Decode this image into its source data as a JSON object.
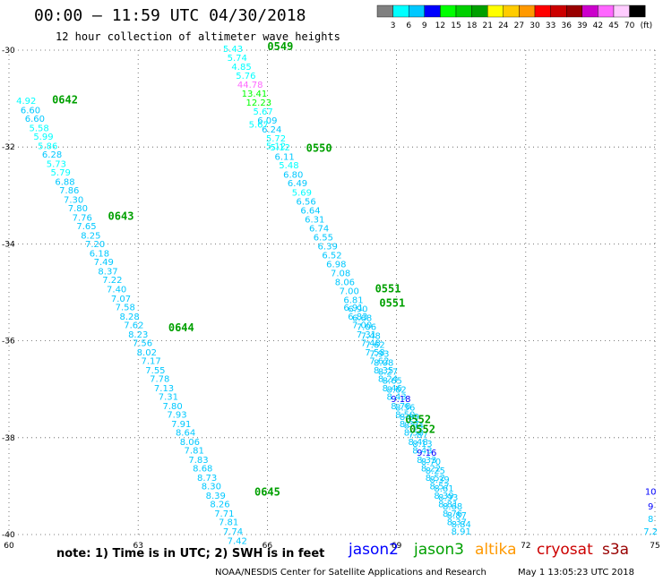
{
  "header": {
    "title": "00:00 — 11:59 UTC 04/30/2018",
    "subtitle": "12 hour collection of altimeter wave heights"
  },
  "colorbar": {
    "labels": [
      "3",
      "6",
      "9",
      "12",
      "15",
      "18",
      "21",
      "24",
      "27",
      "30",
      "33",
      "36",
      "39",
      "42",
      "45",
      "70"
    ],
    "unit": "(ft)",
    "colors": [
      "#808080",
      "#00ffff",
      "#00c8ff",
      "#0000ff",
      "#00ff00",
      "#00d000",
      "#00a000",
      "#ffff00",
      "#ffcc00",
      "#ff9900",
      "#ff0000",
      "#cc0000",
      "#990000",
      "#cc00cc",
      "#ff66ff",
      "#ffccff",
      "#000000"
    ]
  },
  "footer": {
    "note": "note:  1) Time is in UTC;  2) SWH is in feet",
    "satellites": [
      {
        "name": "jason2",
        "color": "#0000ff"
      },
      {
        "name": "jason3",
        "color": "#00a000"
      },
      {
        "name": "altika",
        "color": "#ff9900"
      },
      {
        "name": "cryosat",
        "color": "#cc0000"
      },
      {
        "name": "s3a",
        "color": "#990000"
      }
    ],
    "credit": "NOAA/NESDIS Center for Satellite Applications and Research",
    "timestamp": "May  1 13:05:23 UTC 2018"
  },
  "chart_data": {
    "type": "scatter",
    "xlim": [
      60,
      75
    ],
    "ylim": [
      -40,
      -30
    ],
    "x_ticks": [
      "60",
      "63",
      "66",
      "69",
      "72",
      "75"
    ],
    "y_ticks": [
      "-30",
      "-32",
      "-34",
      "-36",
      "-38",
      "-40"
    ],
    "grid": true,
    "tracks": [
      {
        "satellite": "jason3",
        "points": [
          {
            "x": 60.4,
            "y": -31.11,
            "v": "4.92"
          },
          {
            "x": 60.5,
            "y": -31.3,
            "v": "6.60"
          },
          {
            "x": 60.6,
            "y": -31.48,
            "v": "6.60"
          },
          {
            "x": 60.7,
            "y": -31.67,
            "v": "5.58"
          },
          {
            "x": 60.8,
            "y": -31.85,
            "v": "5.99"
          },
          {
            "x": 60.9,
            "y": -32.04,
            "v": "5.86"
          },
          {
            "x": 61.0,
            "y": -32.22,
            "v": "6.28"
          },
          {
            "x": 61.1,
            "y": -32.41,
            "v": "5.73"
          },
          {
            "x": 61.2,
            "y": -32.59,
            "v": "5.79"
          },
          {
            "x": 61.3,
            "y": -32.78,
            "v": "6.88"
          },
          {
            "x": 61.4,
            "y": -32.96,
            "v": "7.86"
          },
          {
            "x": 61.5,
            "y": -33.15,
            "v": "7.30"
          },
          {
            "x": 61.6,
            "y": -33.33,
            "v": "7.80"
          },
          {
            "x": 61.7,
            "y": -33.52,
            "v": "7.76"
          },
          {
            "x": 61.8,
            "y": -33.7,
            "v": "7.65"
          },
          {
            "x": 61.9,
            "y": -33.89,
            "v": "8.25"
          },
          {
            "x": 62.0,
            "y": -34.07,
            "v": "7.20"
          },
          {
            "x": 62.1,
            "y": -34.26,
            "v": "6.18"
          },
          {
            "x": 62.2,
            "y": -34.44,
            "v": "7.49"
          },
          {
            "x": 62.3,
            "y": -34.63,
            "v": "8.37"
          },
          {
            "x": 62.4,
            "y": -34.81,
            "v": "7.22"
          },
          {
            "x": 62.5,
            "y": -35.0,
            "v": "7.40"
          },
          {
            "x": 62.6,
            "y": -35.19,
            "v": "7.07"
          },
          {
            "x": 62.7,
            "y": -35.37,
            "v": "7.58"
          },
          {
            "x": 62.8,
            "y": -35.56,
            "v": "8.28"
          },
          {
            "x": 62.9,
            "y": -35.74,
            "v": "7.62"
          },
          {
            "x": 63.0,
            "y": -35.93,
            "v": "8.23"
          },
          {
            "x": 63.1,
            "y": -36.11,
            "v": "7.56"
          },
          {
            "x": 63.2,
            "y": -36.3,
            "v": "8.02"
          },
          {
            "x": 63.3,
            "y": -36.48,
            "v": "7.17"
          },
          {
            "x": 63.4,
            "y": -36.67,
            "v": "7.55"
          },
          {
            "x": 63.5,
            "y": -36.85,
            "v": "7.78"
          },
          {
            "x": 63.6,
            "y": -37.04,
            "v": "7.13"
          },
          {
            "x": 63.7,
            "y": -37.22,
            "v": "7.31"
          },
          {
            "x": 63.8,
            "y": -37.41,
            "v": "7.80"
          },
          {
            "x": 63.9,
            "y": -37.59,
            "v": "7.93"
          },
          {
            "x": 64.0,
            "y": -37.78,
            "v": "7.91"
          },
          {
            "x": 64.1,
            "y": -37.96,
            "v": "8.64"
          },
          {
            "x": 64.2,
            "y": -38.15,
            "v": "8.06"
          },
          {
            "x": 64.3,
            "y": -38.33,
            "v": "7.81"
          },
          {
            "x": 64.4,
            "y": -38.52,
            "v": "7.83"
          },
          {
            "x": 64.5,
            "y": -38.7,
            "v": "8.68"
          },
          {
            "x": 64.6,
            "y": -38.89,
            "v": "8.73"
          },
          {
            "x": 64.7,
            "y": -39.07,
            "v": "8.30"
          },
          {
            "x": 64.8,
            "y": -39.26,
            "v": "8.39"
          },
          {
            "x": 64.9,
            "y": -39.44,
            "v": "8.26"
          },
          {
            "x": 65.0,
            "y": -39.63,
            "v": "7.71"
          },
          {
            "x": 65.1,
            "y": -39.81,
            "v": "7.81"
          },
          {
            "x": 65.2,
            "y": -40.0,
            "v": "7.74"
          },
          {
            "x": 65.3,
            "y": -40.19,
            "v": "7.42"
          }
        ],
        "time_labels": [
          {
            "x": 61.0,
            "y": -31.1,
            "text": "0642"
          },
          {
            "x": 62.3,
            "y": -33.5,
            "text": "0643"
          },
          {
            "x": 63.7,
            "y": -35.8,
            "text": "0644"
          },
          {
            "x": 65.7,
            "y": -39.2,
            "text": "0645"
          }
        ]
      },
      {
        "satellite": "jason3",
        "points": [
          {
            "x": 65.2,
            "y": -30.04,
            "v": "5.43"
          },
          {
            "x": 65.3,
            "y": -30.22,
            "v": "5.74"
          },
          {
            "x": 65.4,
            "y": -30.41,
            "v": "4.85"
          },
          {
            "x": 65.5,
            "y": -30.59,
            "v": "5.76"
          },
          {
            "x": 65.6,
            "y": -30.78,
            "v": "44.78"
          },
          {
            "x": 65.7,
            "y": -30.96,
            "v": "13.41"
          },
          {
            "x": 65.8,
            "y": -31.15,
            "v": "12.23"
          },
          {
            "x": 65.9,
            "y": -31.33,
            "v": "5.67"
          },
          {
            "x": 66.0,
            "y": -31.52,
            "v": "6.09"
          },
          {
            "x": 66.1,
            "y": -31.7,
            "v": "6.24"
          },
          {
            "x": 66.2,
            "y": -31.89,
            "v": "5.72"
          },
          {
            "x": 66.3,
            "y": -32.07,
            "v": "5.12"
          },
          {
            "x": 66.4,
            "y": -32.26,
            "v": "6.11"
          },
          {
            "x": 66.5,
            "y": -32.44,
            "v": "5.48"
          },
          {
            "x": 66.6,
            "y": -32.63,
            "v": "6.80"
          },
          {
            "x": 66.7,
            "y": -32.81,
            "v": "6.49"
          },
          {
            "x": 66.8,
            "y": -33.0,
            "v": "5.69"
          },
          {
            "x": 66.9,
            "y": -33.19,
            "v": "6.56"
          },
          {
            "x": 67.0,
            "y": -33.37,
            "v": "6.64"
          },
          {
            "x": 67.1,
            "y": -33.56,
            "v": "6.31"
          },
          {
            "x": 67.2,
            "y": -33.74,
            "v": "6.74"
          },
          {
            "x": 67.3,
            "y": -33.93,
            "v": "6.55"
          },
          {
            "x": 67.4,
            "y": -34.11,
            "v": "6.39"
          },
          {
            "x": 67.5,
            "y": -34.3,
            "v": "6.52"
          },
          {
            "x": 67.6,
            "y": -34.48,
            "v": "6.98"
          },
          {
            "x": 67.7,
            "y": -34.67,
            "v": "7.08"
          },
          {
            "x": 67.8,
            "y": -34.85,
            "v": "8.06"
          },
          {
            "x": 67.9,
            "y": -35.04,
            "v": "7.00"
          },
          {
            "x": 68.0,
            "y": -35.22,
            "v": "6.81"
          },
          {
            "x": 68.1,
            "y": -35.41,
            "v": "6.90"
          },
          {
            "x": 68.2,
            "y": -35.59,
            "v": "6.68"
          },
          {
            "x": 68.3,
            "y": -35.78,
            "v": "7.06"
          },
          {
            "x": 68.4,
            "y": -35.96,
            "v": "7.48"
          },
          {
            "x": 68.5,
            "y": -36.15,
            "v": "7.62"
          },
          {
            "x": 68.6,
            "y": -36.33,
            "v": "7.93"
          },
          {
            "x": 68.7,
            "y": -36.52,
            "v": "8.08"
          },
          {
            "x": 68.8,
            "y": -36.7,
            "v": "8.27"
          },
          {
            "x": 68.9,
            "y": -36.89,
            "v": "8.65"
          },
          {
            "x": 69.0,
            "y": -37.07,
            "v": "8.62"
          },
          {
            "x": 69.1,
            "y": -37.26,
            "v": "9.18"
          },
          {
            "x": 69.2,
            "y": -37.44,
            "v": "8.56"
          },
          {
            "x": 69.3,
            "y": -37.63,
            "v": "8.89"
          },
          {
            "x": 69.4,
            "y": -37.81,
            "v": "8.64"
          },
          {
            "x": 69.5,
            "y": -38.0,
            "v": "7.87"
          },
          {
            "x": 69.6,
            "y": -38.19,
            "v": "8.13"
          },
          {
            "x": 69.7,
            "y": -38.37,
            "v": "9.16"
          },
          {
            "x": 69.8,
            "y": -38.56,
            "v": "8.70"
          },
          {
            "x": 69.9,
            "y": -38.74,
            "v": "8.25"
          },
          {
            "x": 70.0,
            "y": -38.93,
            "v": "8.39"
          },
          {
            "x": 70.1,
            "y": -39.11,
            "v": "8.61"
          },
          {
            "x": 70.2,
            "y": -39.3,
            "v": "8.93"
          },
          {
            "x": 70.3,
            "y": -39.48,
            "v": "8.68"
          },
          {
            "x": 70.4,
            "y": -39.67,
            "v": "8.87"
          },
          {
            "x": 70.5,
            "y": -39.85,
            "v": "8.84"
          }
        ],
        "time_labels": [
          {
            "x": 66.0,
            "y": -30.0,
            "text": "0549"
          },
          {
            "x": 66.9,
            "y": -32.1,
            "text": "0550"
          },
          {
            "x": 68.5,
            "y": -35.0,
            "text": "0551"
          },
          {
            "x": 69.2,
            "y": -37.7,
            "text": "0552"
          }
        ]
      },
      {
        "satellite": "jason3",
        "points": [
          {
            "x": 65.8,
            "y": -31.6,
            "v": "5.67"
          },
          {
            "x": 66.2,
            "y": -32.04,
            "v": "5.12"
          },
          {
            "x": 68.0,
            "y": -35.38,
            "v": "6.91"
          },
          {
            "x": 68.1,
            "y": -35.56,
            "v": "6.83"
          },
          {
            "x": 68.2,
            "y": -35.74,
            "v": "7.00"
          },
          {
            "x": 68.3,
            "y": -35.93,
            "v": "7.31"
          },
          {
            "x": 68.4,
            "y": -36.11,
            "v": "7.48"
          },
          {
            "x": 68.5,
            "y": -36.3,
            "v": "7.58"
          },
          {
            "x": 68.6,
            "y": -36.48,
            "v": "7.62"
          },
          {
            "x": 68.7,
            "y": -36.67,
            "v": "8.35"
          },
          {
            "x": 68.8,
            "y": -36.85,
            "v": "8.24"
          },
          {
            "x": 68.9,
            "y": -37.04,
            "v": "8.46"
          },
          {
            "x": 69.0,
            "y": -37.22,
            "v": "8.43"
          },
          {
            "x": 69.1,
            "y": -37.41,
            "v": "8.78"
          },
          {
            "x": 69.2,
            "y": -37.59,
            "v": "8.50"
          },
          {
            "x": 69.3,
            "y": -37.78,
            "v": "8.37"
          },
          {
            "x": 69.4,
            "y": -37.96,
            "v": "8.58"
          },
          {
            "x": 69.5,
            "y": -38.15,
            "v": "8.48"
          },
          {
            "x": 69.6,
            "y": -38.33,
            "v": "8.43"
          },
          {
            "x": 69.7,
            "y": -38.52,
            "v": "8.33"
          },
          {
            "x": 69.8,
            "y": -38.7,
            "v": "8.22"
          },
          {
            "x": 69.9,
            "y": -38.89,
            "v": "8.52"
          },
          {
            "x": 70.0,
            "y": -39.07,
            "v": "8.57"
          },
          {
            "x": 70.1,
            "y": -39.26,
            "v": "8.39"
          },
          {
            "x": 70.2,
            "y": -39.44,
            "v": "8.81"
          },
          {
            "x": 70.3,
            "y": -39.63,
            "v": "8.76"
          },
          {
            "x": 70.4,
            "y": -39.81,
            "v": "8.37"
          },
          {
            "x": 70.5,
            "y": -40.0,
            "v": "8.91"
          }
        ],
        "time_labels": [
          {
            "x": 68.6,
            "y": -35.3,
            "text": "0551"
          },
          {
            "x": 69.3,
            "y": -37.9,
            "text": "0552"
          }
        ]
      },
      {
        "satellite": "jason3",
        "points": [
          {
            "x": 74.9,
            "y": -39.18,
            "v": "10"
          },
          {
            "x": 74.9,
            "y": -39.48,
            "v": "9"
          },
          {
            "x": 74.9,
            "y": -39.74,
            "v": "8"
          },
          {
            "x": 74.9,
            "y": -40.0,
            "v": "7.2"
          }
        ],
        "time_labels": []
      }
    ]
  }
}
